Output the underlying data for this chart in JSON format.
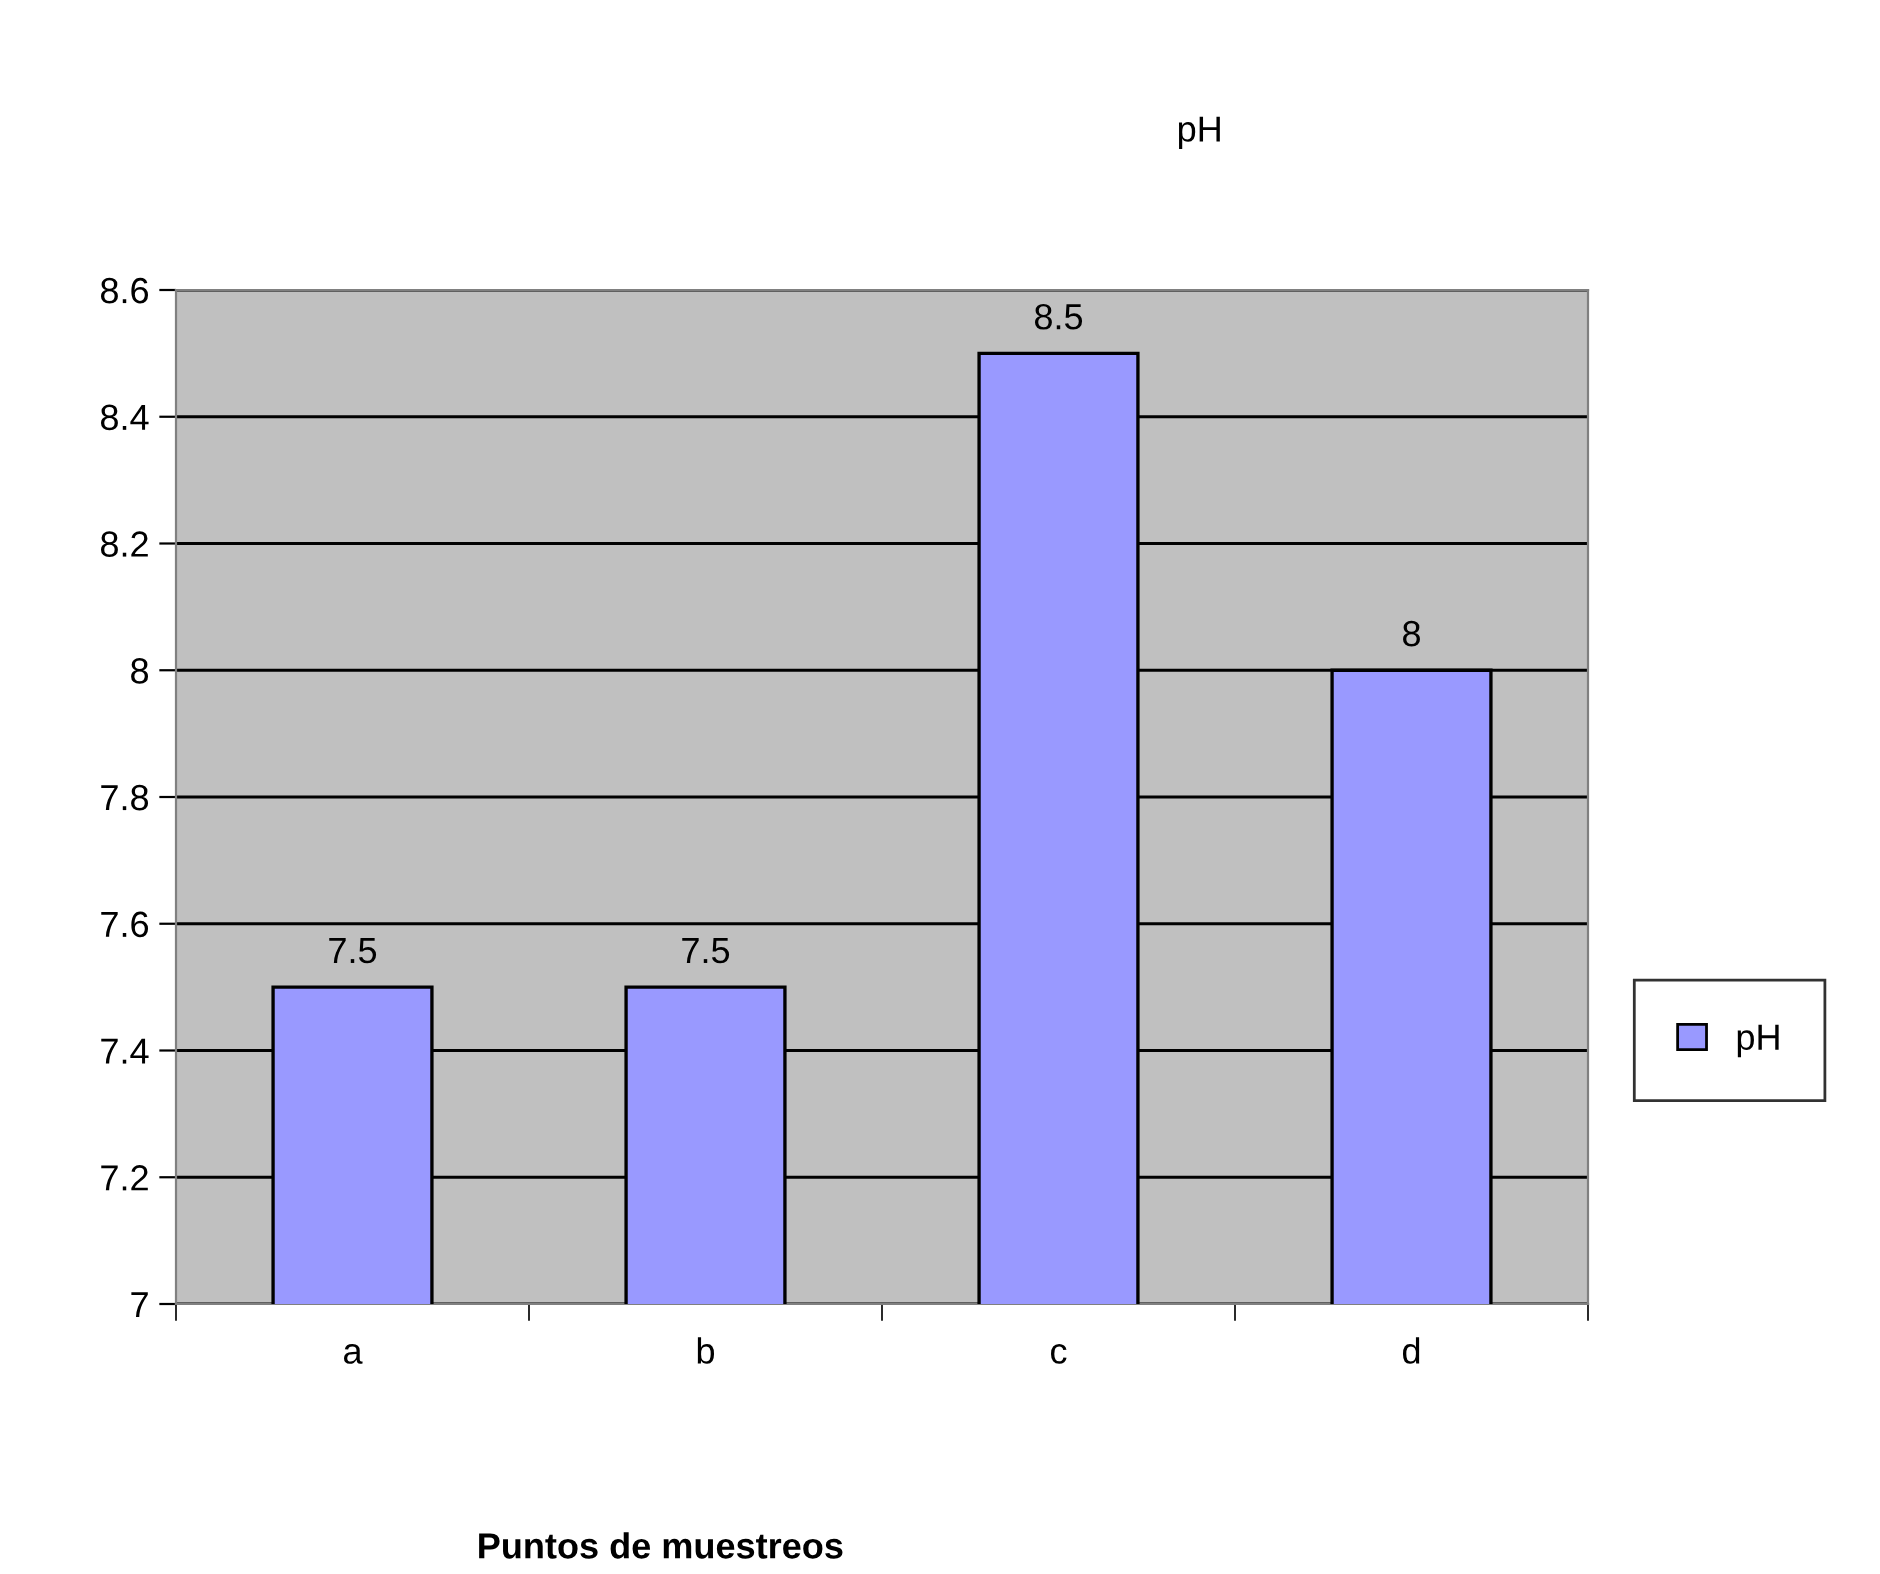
{
  "chart_data": {
    "type": "bar",
    "title": "pH",
    "xlabel": "Puntos de muestreos",
    "categories": [
      "a",
      "b",
      "c",
      "d"
    ],
    "series": [
      {
        "name": "pH",
        "color": "#9999ff",
        "values": [
          7.5,
          7.5,
          8.5,
          8
        ]
      }
    ],
    "ylim": [
      7,
      8.6
    ],
    "yticks": [
      7,
      7.2,
      7.4,
      7.6,
      7.8,
      8,
      8.2,
      8.4,
      8.6
    ],
    "grid": "y",
    "legend": "right",
    "data_labels": true
  }
}
